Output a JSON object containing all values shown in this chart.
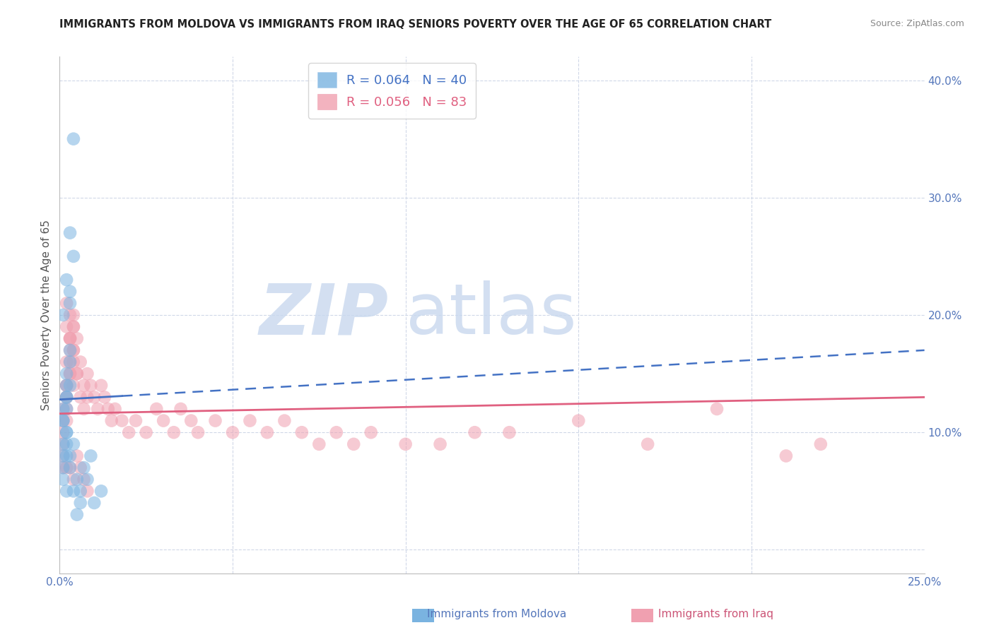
{
  "title": "IMMIGRANTS FROM MOLDOVA VS IMMIGRANTS FROM IRAQ SENIORS POVERTY OVER THE AGE OF 65 CORRELATION CHART",
  "source": "Source: ZipAtlas.com",
  "ylabel": "Seniors Poverty Over the Age of 65",
  "xlabel_moldova": "Immigrants from Moldova",
  "xlabel_iraq": "Immigrants from Iraq",
  "xlim": [
    0.0,
    0.25
  ],
  "ylim": [
    -0.02,
    0.42
  ],
  "moldova_R": 0.064,
  "moldova_N": 40,
  "iraq_R": 0.056,
  "iraq_N": 83,
  "moldova_color": "#7ab3e0",
  "iraq_color": "#f0a0b0",
  "moldova_line_color": "#4472c4",
  "iraq_line_color": "#e06080",
  "moldova_dash_color": "#90b8e0",
  "grid_color": "#d0d8e8",
  "background_color": "#ffffff",
  "watermark_zip": "ZIP",
  "watermark_atlas": "atlas",
  "watermark_color_zip": "#c8d8ee",
  "watermark_color_atlas": "#c8d8ee",
  "moldova_scatter_x": [
    0.001,
    0.001,
    0.002,
    0.002,
    0.001,
    0.002,
    0.003,
    0.001,
    0.002,
    0.001,
    0.003,
    0.002,
    0.003,
    0.001,
    0.002,
    0.003,
    0.003,
    0.002,
    0.001,
    0.002,
    0.004,
    0.003,
    0.004,
    0.002,
    0.003,
    0.001,
    0.002,
    0.003,
    0.004,
    0.002,
    0.005,
    0.004,
    0.006,
    0.005,
    0.007,
    0.006,
    0.008,
    0.009,
    0.01,
    0.012
  ],
  "moldova_scatter_y": [
    0.12,
    0.08,
    0.13,
    0.1,
    0.11,
    0.09,
    0.14,
    0.07,
    0.12,
    0.09,
    0.27,
    0.23,
    0.22,
    0.2,
    0.15,
    0.17,
    0.16,
    0.13,
    0.11,
    0.1,
    0.25,
    0.21,
    0.35,
    0.14,
    0.08,
    0.06,
    0.05,
    0.07,
    0.09,
    0.08,
    0.06,
    0.05,
    0.04,
    0.03,
    0.07,
    0.05,
    0.06,
    0.08,
    0.04,
    0.05
  ],
  "iraq_scatter_x": [
    0.001,
    0.001,
    0.001,
    0.002,
    0.001,
    0.002,
    0.001,
    0.002,
    0.001,
    0.002,
    0.002,
    0.003,
    0.002,
    0.003,
    0.002,
    0.003,
    0.004,
    0.003,
    0.003,
    0.002,
    0.004,
    0.003,
    0.004,
    0.003,
    0.003,
    0.002,
    0.004,
    0.004,
    0.005,
    0.004,
    0.005,
    0.004,
    0.006,
    0.005,
    0.006,
    0.007,
    0.007,
    0.008,
    0.008,
    0.009,
    0.01,
    0.011,
    0.012,
    0.013,
    0.014,
    0.015,
    0.016,
    0.018,
    0.02,
    0.022,
    0.025,
    0.028,
    0.03,
    0.033,
    0.035,
    0.038,
    0.04,
    0.045,
    0.05,
    0.055,
    0.06,
    0.065,
    0.07,
    0.075,
    0.08,
    0.085,
    0.09,
    0.1,
    0.11,
    0.12,
    0.13,
    0.15,
    0.17,
    0.19,
    0.21,
    0.22,
    0.002,
    0.003,
    0.004,
    0.005,
    0.006,
    0.007,
    0.008
  ],
  "iraq_scatter_y": [
    0.12,
    0.1,
    0.09,
    0.14,
    0.08,
    0.13,
    0.11,
    0.12,
    0.07,
    0.11,
    0.19,
    0.18,
    0.21,
    0.17,
    0.16,
    0.2,
    0.19,
    0.18,
    0.15,
    0.14,
    0.17,
    0.16,
    0.2,
    0.18,
    0.15,
    0.13,
    0.19,
    0.17,
    0.18,
    0.16,
    0.15,
    0.14,
    0.16,
    0.15,
    0.13,
    0.14,
    0.12,
    0.15,
    0.13,
    0.14,
    0.13,
    0.12,
    0.14,
    0.13,
    0.12,
    0.11,
    0.12,
    0.11,
    0.1,
    0.11,
    0.1,
    0.12,
    0.11,
    0.1,
    0.12,
    0.11,
    0.1,
    0.11,
    0.1,
    0.11,
    0.1,
    0.11,
    0.1,
    0.09,
    0.1,
    0.09,
    0.1,
    0.09,
    0.09,
    0.1,
    0.1,
    0.11,
    0.09,
    0.12,
    0.08,
    0.09,
    0.07,
    0.07,
    0.06,
    0.08,
    0.07,
    0.06,
    0.05
  ],
  "moldova_line_x0": 0.0,
  "moldova_line_x_solid_end": 0.018,
  "moldova_line_x1": 0.25,
  "moldova_line_y0": 0.128,
  "moldova_line_y1": 0.17,
  "iraq_line_x0": 0.0,
  "iraq_line_x1": 0.25,
  "iraq_line_y0": 0.116,
  "iraq_line_y1": 0.13
}
